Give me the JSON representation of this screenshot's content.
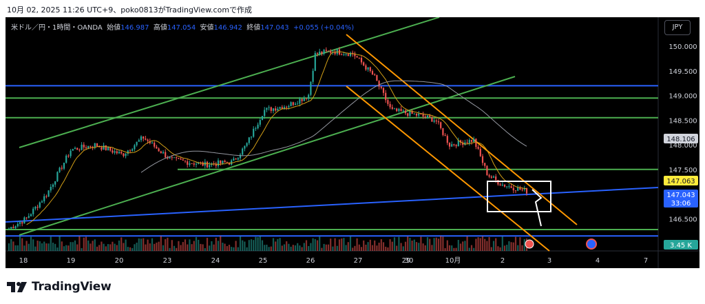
{
  "caption": "10月 02, 2025 11:26 UTC+9、poko0813がTradingView.comで作成",
  "legend": {
    "symbol": "米ドル／円・1時間・OANDA",
    "open_label": "始値",
    "open": "146.987",
    "high_label": "高値",
    "high": "147.054",
    "low_label": "安値",
    "low": "146.942",
    "close_label": "終値",
    "close": "147.043",
    "change": "+0.055 (+0.04%)"
  },
  "currency_button": "JPY",
  "brand": "TradingView",
  "chart_data": {
    "type": "candlestick",
    "symbol": "USD/JPY",
    "interval": "1h",
    "broker": "OANDA",
    "y_ticks": [
      "146.500",
      "147.000",
      "147.500",
      "148.000",
      "148.500",
      "149.000",
      "149.500",
      "150.000"
    ],
    "y_range": [
      146.0,
      150.45
    ],
    "x_ticks": [
      "18",
      "19",
      "20",
      "23",
      "24",
      "25",
      "26",
      "27",
      "29",
      "30",
      "10月",
      "2",
      "3",
      "4",
      "7"
    ],
    "price_labels": [
      {
        "value": "148.106",
        "color": "#ffffff",
        "bg": "#d1d4dc",
        "fg": "#131722"
      },
      {
        "value": "147.063",
        "color": "#ffeb3b",
        "bg": "#ffeb3b",
        "fg": "#131722"
      },
      {
        "value": "147.043",
        "countdown": "33:06",
        "bg": "#2962ff",
        "fg": "#ffffff"
      },
      {
        "value": "3.45 K",
        "bg": "#26a69a",
        "fg": "#ffffff"
      }
    ],
    "series_summary": {
      "start": 146.3,
      "peak": 149.95,
      "last": 147.043
    },
    "horizontal_levels": [
      {
        "value": 149.2,
        "color": "#2962ff"
      },
      {
        "value": 148.95,
        "color": "#4caf50"
      },
      {
        "value": 148.55,
        "color": "#4caf50"
      },
      {
        "value": 147.5,
        "color": "#4caf50"
      },
      {
        "value": 146.28,
        "color": "#4caf50"
      },
      {
        "value": 146.15,
        "color": "#2962ff"
      }
    ],
    "colors": {
      "up": "#26a69a",
      "down": "#ef5350",
      "ma_fast": "#d4a017",
      "ma_slow": "#9598a1",
      "trend_up": "#4caf50",
      "trend_down": "#ff9800",
      "trend_blue": "#2962ff"
    }
  }
}
